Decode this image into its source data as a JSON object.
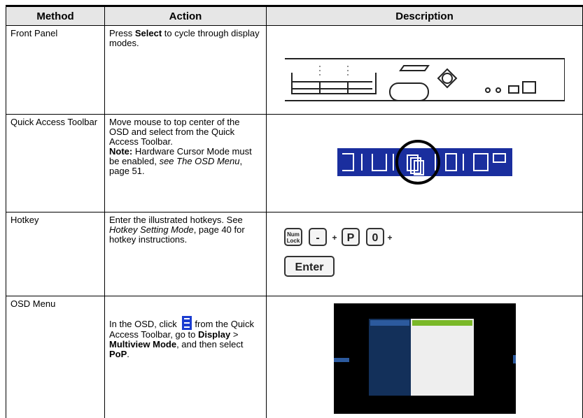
{
  "table": {
    "headers": [
      "Method",
      "Action",
      "Description"
    ],
    "rows": [
      {
        "method": "Front Panel",
        "action": [
          "Press ",
          "Select",
          " to cycle through display modes."
        ]
      },
      {
        "method": "Quick Access Toolbar",
        "action": [
          "Move mouse to top center of the OSD and select from the Quick Access Toolbar."
        ],
        "note": [
          "Note:",
          " Hardware Cursor Mode must be enabled, ",
          "see The OSD Menu",
          ", page 51."
        ]
      },
      {
        "method": "Hotkey",
        "action": [
          "Enter the illustrated hotkeys. See ",
          "Hotkey Setting Mode",
          ", page 40 for hotkey instructions."
        ],
        "keys": [
          "Num",
          "Lock",
          "-",
          "P",
          "0",
          "+",
          "Enter"
        ]
      },
      {
        "method": "OSD Menu",
        "action": [
          "In the OSD, click ",
          "from the Quick Access Toolbar, go to ",
          "Display",
          " > ",
          "Multiview Mode",
          ", and then select ",
          "PoP",
          "."
        ]
      }
    ]
  }
}
